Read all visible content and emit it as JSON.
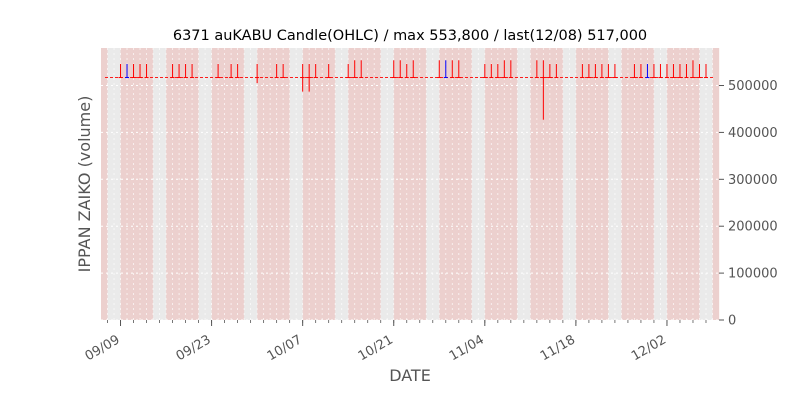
{
  "chart_data": {
    "type": "candlestick",
    "title": "6371 auKABU Candle(OHLC) / max 553,800 / last(12/08) 517,000",
    "xlabel": "DATE",
    "ylabel": "IPPAN ZAIKO (volume)",
    "ylim": [
      0,
      580000
    ],
    "yticks": [
      0,
      100000,
      200000,
      300000,
      400000,
      500000
    ],
    "ytick_labels": [
      "0",
      "100000",
      "200000",
      "300000",
      "400000",
      "500000"
    ],
    "xlim": [
      "2024-09-06",
      "2024-12-10"
    ],
    "xticks": [
      {
        "date": "2024-09-09",
        "label": "09/09"
      },
      {
        "date": "2024-09-23",
        "label": "09/23"
      },
      {
        "date": "2024-10-07",
        "label": "10/07"
      },
      {
        "date": "2024-10-21",
        "label": "10/21"
      },
      {
        "date": "2024-11-04",
        "label": "11/04"
      },
      {
        "date": "2024-11-18",
        "label": "11/18"
      },
      {
        "date": "2024-12-02",
        "label": "12/02"
      }
    ],
    "grid": true,
    "colors": {
      "up": "#ff0000",
      "down": "#0000ff",
      "flat": "#ff0000",
      "bg": "#e5e5e5",
      "band": "#f0c8c4"
    },
    "candles": [
      {
        "date": "2024-09-09",
        "o": 517000,
        "h": 546000,
        "l": 517000,
        "c": 517000
      },
      {
        "date": "2024-09-10",
        "o": 517000,
        "h": 546000,
        "l": 517000,
        "c": 517000,
        "dir": "down"
      },
      {
        "date": "2024-09-11",
        "o": 517000,
        "h": 546000,
        "l": 517000,
        "c": 517000
      },
      {
        "date": "2024-09-12",
        "o": 517000,
        "h": 546000,
        "l": 517000,
        "c": 517000
      },
      {
        "date": "2024-09-13",
        "o": 517000,
        "h": 546000,
        "l": 517000,
        "c": 517000
      },
      {
        "date": "2024-09-17",
        "o": 517000,
        "h": 546000,
        "l": 517000,
        "c": 517000
      },
      {
        "date": "2024-09-18",
        "o": 517000,
        "h": 546000,
        "l": 517000,
        "c": 517000
      },
      {
        "date": "2024-09-19",
        "o": 517000,
        "h": 546000,
        "l": 517000,
        "c": 517000
      },
      {
        "date": "2024-09-20",
        "o": 517000,
        "h": 546000,
        "l": 517000,
        "c": 517000
      },
      {
        "date": "2024-09-24",
        "o": 517000,
        "h": 546000,
        "l": 517000,
        "c": 517000
      },
      {
        "date": "2024-09-26",
        "o": 517000,
        "h": 546000,
        "l": 517000,
        "c": 517000
      },
      {
        "date": "2024-09-27",
        "o": 517000,
        "h": 546000,
        "l": 517000,
        "c": 517000
      },
      {
        "date": "2024-09-30",
        "o": 517000,
        "h": 546000,
        "l": 505000,
        "c": 517000
      },
      {
        "date": "2024-10-03",
        "o": 517000,
        "h": 546000,
        "l": 517000,
        "c": 517000
      },
      {
        "date": "2024-10-04",
        "o": 517000,
        "h": 546000,
        "l": 517000,
        "c": 517000
      },
      {
        "date": "2024-10-07",
        "o": 517000,
        "h": 546000,
        "l": 487000,
        "c": 517000
      },
      {
        "date": "2024-10-08",
        "o": 517000,
        "h": 546000,
        "l": 487000,
        "c": 517000
      },
      {
        "date": "2024-10-09",
        "o": 517000,
        "h": 546000,
        "l": 517000,
        "c": 517000
      },
      {
        "date": "2024-10-11",
        "o": 517000,
        "h": 546000,
        "l": 517000,
        "c": 517000
      },
      {
        "date": "2024-10-14",
        "o": 517000,
        "h": 546000,
        "l": 517000,
        "c": 517000
      },
      {
        "date": "2024-10-15",
        "o": 517000,
        "h": 553800,
        "l": 517000,
        "c": 517000
      },
      {
        "date": "2024-10-16",
        "o": 517000,
        "h": 553800,
        "l": 517000,
        "c": 517000
      },
      {
        "date": "2024-10-21",
        "o": 517000,
        "h": 553800,
        "l": 517000,
        "c": 517000
      },
      {
        "date": "2024-10-22",
        "o": 517000,
        "h": 553800,
        "l": 517000,
        "c": 517000
      },
      {
        "date": "2024-10-23",
        "o": 517000,
        "h": 546000,
        "l": 517000,
        "c": 517000
      },
      {
        "date": "2024-10-24",
        "o": 517000,
        "h": 553800,
        "l": 517000,
        "c": 517000
      },
      {
        "date": "2024-10-28",
        "o": 517000,
        "h": 553800,
        "l": 517000,
        "c": 517000
      },
      {
        "date": "2024-10-29",
        "o": 517000,
        "h": 553800,
        "l": 517000,
        "c": 517000,
        "dir": "down"
      },
      {
        "date": "2024-10-30",
        "o": 517000,
        "h": 553800,
        "l": 517000,
        "c": 517000
      },
      {
        "date": "2024-10-31",
        "o": 517000,
        "h": 553800,
        "l": 517000,
        "c": 517000
      },
      {
        "date": "2024-11-04",
        "o": 517000,
        "h": 546000,
        "l": 517000,
        "c": 517000
      },
      {
        "date": "2024-11-05",
        "o": 517000,
        "h": 546000,
        "l": 517000,
        "c": 517000
      },
      {
        "date": "2024-11-06",
        "o": 517000,
        "h": 546000,
        "l": 517000,
        "c": 517000
      },
      {
        "date": "2024-11-07",
        "o": 517000,
        "h": 553800,
        "l": 517000,
        "c": 517000
      },
      {
        "date": "2024-11-08",
        "o": 517000,
        "h": 553800,
        "l": 517000,
        "c": 517000
      },
      {
        "date": "2024-11-12",
        "o": 517000,
        "h": 553800,
        "l": 517000,
        "c": 517000
      },
      {
        "date": "2024-11-13",
        "o": 517000,
        "h": 553800,
        "l": 427000,
        "c": 517000
      },
      {
        "date": "2024-11-14",
        "o": 517000,
        "h": 546000,
        "l": 517000,
        "c": 517000
      },
      {
        "date": "2024-11-15",
        "o": 517000,
        "h": 546000,
        "l": 517000,
        "c": 517000
      },
      {
        "date": "2024-11-19",
        "o": 517000,
        "h": 546000,
        "l": 517000,
        "c": 517000
      },
      {
        "date": "2024-11-20",
        "o": 517000,
        "h": 546000,
        "l": 517000,
        "c": 517000
      },
      {
        "date": "2024-11-21",
        "o": 517000,
        "h": 546000,
        "l": 517000,
        "c": 517000
      },
      {
        "date": "2024-11-22",
        "o": 517000,
        "h": 546000,
        "l": 517000,
        "c": 517000
      },
      {
        "date": "2024-11-23",
        "o": 517000,
        "h": 546000,
        "l": 517000,
        "c": 517000
      },
      {
        "date": "2024-11-24",
        "o": 517000,
        "h": 546000,
        "l": 517000,
        "c": 517000
      },
      {
        "date": "2024-11-27",
        "o": 517000,
        "h": 546000,
        "l": 517000,
        "c": 517000
      },
      {
        "date": "2024-11-28",
        "o": 517000,
        "h": 546000,
        "l": 517000,
        "c": 517000
      },
      {
        "date": "2024-11-29",
        "o": 517000,
        "h": 546000,
        "l": 517000,
        "c": 517000,
        "dir": "down"
      },
      {
        "date": "2024-11-30",
        "o": 517000,
        "h": 546000,
        "l": 517000,
        "c": 517000
      },
      {
        "date": "2024-12-01",
        "o": 517000,
        "h": 546000,
        "l": 517000,
        "c": 517000
      },
      {
        "date": "2024-12-02",
        "o": 517000,
        "h": 546000,
        "l": 517000,
        "c": 517000
      },
      {
        "date": "2024-12-03",
        "o": 517000,
        "h": 546000,
        "l": 517000,
        "c": 517000
      },
      {
        "date": "2024-12-04",
        "o": 517000,
        "h": 546000,
        "l": 517000,
        "c": 517000
      },
      {
        "date": "2024-12-05",
        "o": 517000,
        "h": 546000,
        "l": 517000,
        "c": 517000
      },
      {
        "date": "2024-12-06",
        "o": 517000,
        "h": 553800,
        "l": 517000,
        "c": 517000
      },
      {
        "date": "2024-12-07",
        "o": 517000,
        "h": 546000,
        "l": 517000,
        "c": 517000
      },
      {
        "date": "2024-12-08",
        "o": 517000,
        "h": 546000,
        "l": 517000,
        "c": 517000
      }
    ]
  }
}
